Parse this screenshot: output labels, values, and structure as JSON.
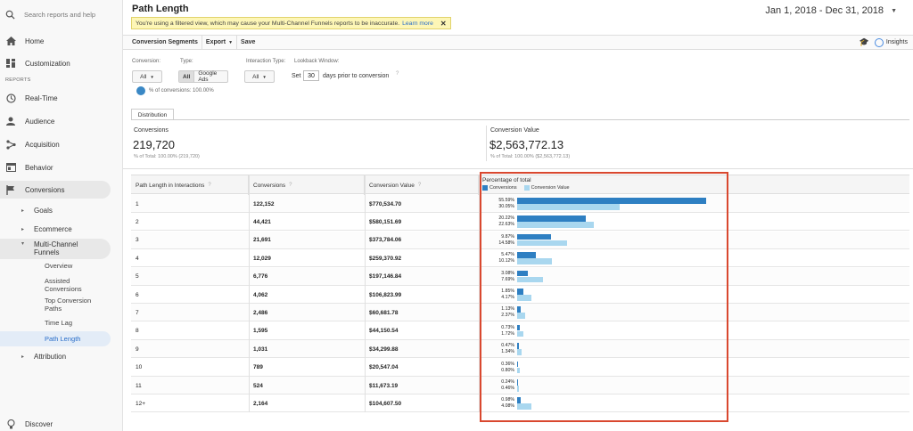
{
  "sidebar": {
    "search_placeholder": "Search reports and help",
    "home": "Home",
    "customization": "Customization",
    "section_reports": "REPORTS",
    "realtime": "Real-Time",
    "audience": "Audience",
    "acquisition": "Acquisition",
    "behavior": "Behavior",
    "conversions": "Conversions",
    "goals": "Goals",
    "ecommerce": "Ecommerce",
    "mcf_line1": "Multi-Channel",
    "mcf_line2": "Funnels",
    "overview": "Overview",
    "assisted_1": "Assisted",
    "assisted_2": "Conversions",
    "topconv_1": "Top Conversion",
    "topconv_2": "Paths",
    "timelag": "Time Lag",
    "pathlength": "Path Length",
    "attribution": "Attribution",
    "discover": "Discover"
  },
  "header": {
    "title": "Path Length",
    "warning": "You're using a filtered view, which may cause your Multi-Channel Funnels reports to be inaccurate.",
    "warning_link": "Learn more",
    "date_range": "Jan 1, 2018 - Dec 31, 2018"
  },
  "toolbar": {
    "segments": "Conversion Segments",
    "export": "Export",
    "save": "Save",
    "insights": "Insights"
  },
  "filters": {
    "conversion_label": "Conversion:",
    "conversion_value": "All",
    "type_label": "Type:",
    "type_all": "All",
    "type_ads": "Google Ads",
    "interaction_label": "Interaction Type:",
    "interaction_value": "All",
    "lookback_label": "Lookback Window:",
    "lookback_set": "Set",
    "lookback_days": "30",
    "lookback_suffix": "days prior to conversion",
    "pct_conversions": "% of conversions: 100.00%"
  },
  "tabs": {
    "distribution": "Distribution"
  },
  "scorecards": {
    "conversions_label": "Conversions",
    "conversions_value": "219,720",
    "conversions_sub": "% of Total: 100.00% (219,720)",
    "value_label": "Conversion Value",
    "value_value": "$2,563,772.13",
    "value_sub": "% of Total: 100.00% ($2,563,772.13)"
  },
  "table": {
    "headers": [
      "Path Length in Interactions",
      "Conversions",
      "Conversion Value",
      "Percentage of total"
    ],
    "legend_conversions": "Conversions",
    "legend_value": "Conversion Value",
    "rows": [
      {
        "path": "1",
        "conv": "122,152",
        "value": "$770,534.70",
        "pc": "55.59%",
        "pv": "30.05%"
      },
      {
        "path": "2",
        "conv": "44,421",
        "value": "$580,151.69",
        "pc": "20.22%",
        "pv": "22.63%"
      },
      {
        "path": "3",
        "conv": "21,691",
        "value": "$373,784.06",
        "pc": "9.87%",
        "pv": "14.58%"
      },
      {
        "path": "4",
        "conv": "12,029",
        "value": "$259,370.92",
        "pc": "5.47%",
        "pv": "10.12%"
      },
      {
        "path": "5",
        "conv": "6,776",
        "value": "$197,146.84",
        "pc": "3.08%",
        "pv": "7.69%"
      },
      {
        "path": "6",
        "conv": "4,062",
        "value": "$106,823.99",
        "pc": "1.85%",
        "pv": "4.17%"
      },
      {
        "path": "7",
        "conv": "2,486",
        "value": "$60,681.78",
        "pc": "1.13%",
        "pv": "2.37%"
      },
      {
        "path": "8",
        "conv": "1,595",
        "value": "$44,150.54",
        "pc": "0.73%",
        "pv": "1.72%"
      },
      {
        "path": "9",
        "conv": "1,031",
        "value": "$34,299.88",
        "pc": "0.47%",
        "pv": "1.34%"
      },
      {
        "path": "10",
        "conv": "789",
        "value": "$20,547.04",
        "pc": "0.36%",
        "pv": "0.80%"
      },
      {
        "path": "11",
        "conv": "524",
        "value": "$11,673.19",
        "pc": "0.24%",
        "pv": "0.46%"
      },
      {
        "path": "12+",
        "conv": "2,164",
        "value": "$104,607.50",
        "pc": "0.98%",
        "pv": "4.08%"
      }
    ]
  },
  "chart_data": {
    "type": "bar",
    "title": "Percentage of total",
    "categories": [
      "1",
      "2",
      "3",
      "4",
      "5",
      "6",
      "7",
      "8",
      "9",
      "10",
      "11",
      "12+"
    ],
    "series": [
      {
        "name": "Conversions",
        "values": [
          55.59,
          20.22,
          9.87,
          5.47,
          3.08,
          1.85,
          1.13,
          0.73,
          0.47,
          0.36,
          0.24,
          0.98
        ]
      },
      {
        "name": "Conversion Value",
        "values": [
          30.05,
          22.63,
          14.58,
          10.12,
          7.69,
          4.17,
          2.37,
          1.72,
          1.34,
          0.8,
          0.46,
          4.08
        ]
      }
    ],
    "colors": {
      "Conversions": "#2e7fc2",
      "Conversion Value": "#a9d7ef"
    },
    "orientation": "horizontal"
  },
  "colors": {
    "accent": "#2e7fc2",
    "highlight": "#d9482f",
    "warning_bg": "#fdf6b6"
  }
}
